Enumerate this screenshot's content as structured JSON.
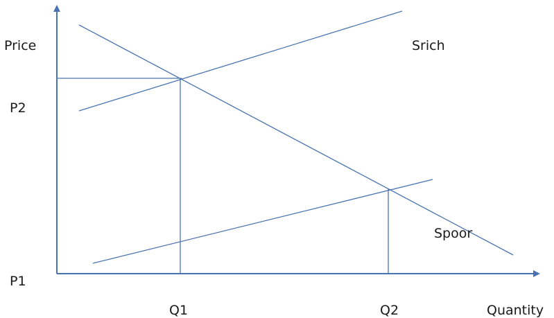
{
  "colors": {
    "line": "#4a73b0",
    "text": "#1a1a1a",
    "background": "#ffffff"
  },
  "labels": {
    "y_axis": "Price",
    "x_axis": "Quantity",
    "p1": "P1",
    "p2": "P2",
    "q1": "Q1",
    "q2": "Q2",
    "demand_rich": "Srich",
    "demand_poor": "Spoor"
  }
}
